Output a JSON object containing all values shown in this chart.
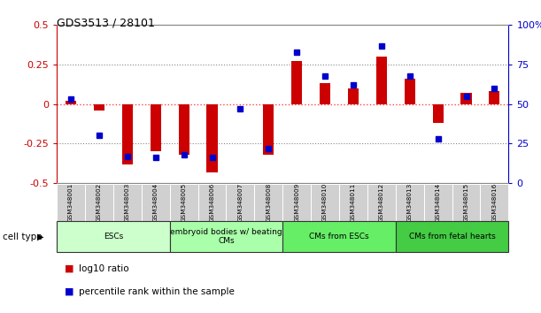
{
  "title": "GDS3513 / 28101",
  "samples": [
    "GSM348001",
    "GSM348002",
    "GSM348003",
    "GSM348004",
    "GSM348005",
    "GSM348006",
    "GSM348007",
    "GSM348008",
    "GSM348009",
    "GSM348010",
    "GSM348011",
    "GSM348012",
    "GSM348013",
    "GSM348014",
    "GSM348015",
    "GSM348016"
  ],
  "log10_ratio": [
    0.02,
    -0.04,
    -0.38,
    -0.3,
    -0.32,
    -0.43,
    0.0,
    -0.32,
    0.27,
    0.13,
    0.1,
    0.3,
    0.16,
    -0.12,
    0.07,
    0.08
  ],
  "percentile_rank": [
    53,
    30,
    17,
    16,
    18,
    16,
    47,
    22,
    83,
    68,
    62,
    87,
    68,
    28,
    55,
    60
  ],
  "cell_type_groups": [
    {
      "label": "ESCs",
      "start": 0,
      "end": 3
    },
    {
      "label": "embryoid bodies w/ beating\nCMs",
      "start": 4,
      "end": 7
    },
    {
      "label": "CMs from ESCs",
      "start": 8,
      "end": 11
    },
    {
      "label": "CMs from fetal hearts",
      "start": 12,
      "end": 15
    }
  ],
  "group_colors": [
    "#ccffcc",
    "#aaffaa",
    "#66ee66",
    "#44cc44"
  ],
  "ylim_left": [
    -0.5,
    0.5
  ],
  "ylim_right": [
    0,
    100
  ],
  "yticks_left": [
    -0.5,
    -0.25,
    0.0,
    0.25,
    0.5
  ],
  "ytick_labels_left": [
    "-0.5",
    "-0.25",
    "0",
    "0.25",
    "0.5"
  ],
  "yticks_right": [
    0,
    25,
    50,
    75,
    100
  ],
  "ytick_labels_right": [
    "0",
    "25",
    "50",
    "75",
    "100%"
  ],
  "bar_color": "#cc0000",
  "dot_color": "#0000cc",
  "zero_line_color": "#ff4444",
  "gridline_color": "#888888",
  "sample_bg_color": "#d0d0d0",
  "cell_type_label": "cell type",
  "legend_bar_label": "log10 ratio",
  "legend_dot_label": "percentile rank within the sample"
}
